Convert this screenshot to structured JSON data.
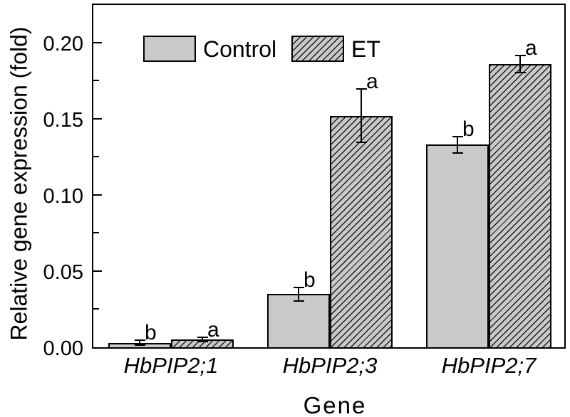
{
  "chart_data": {
    "type": "bar",
    "xlabel": "Gene",
    "ylabel": "Relative gene expression (fold)",
    "categories": [
      "HbPIP2;1",
      "HbPIP2;3",
      "HbPIP2;7"
    ],
    "series": [
      {
        "name": "Control",
        "values": [
          0.003,
          0.035,
          0.133
        ],
        "errors": [
          0.001,
          0.004,
          0.005
        ],
        "sig_letters": [
          "b",
          "b",
          "b"
        ],
        "hatch": "none"
      },
      {
        "name": "ET",
        "values": [
          0.005,
          0.152,
          0.186
        ],
        "errors": [
          0.001,
          0.017,
          0.005
        ],
        "sig_letters": [
          "a",
          "a",
          "a"
        ],
        "hatch": "diagonal-forward"
      }
    ],
    "y_ticks": [
      "0.00",
      "0.05",
      "0.10",
      "0.15",
      "0.20"
    ],
    "y_tick_values": [
      0,
      0.05,
      0.1,
      0.15,
      0.2
    ],
    "y_minor_tick_values": [
      0.025,
      0.075,
      0.125,
      0.175
    ],
    "ylim": [
      0,
      0.226
    ],
    "grid": false,
    "legend_position": "top-left-inside",
    "error_bar_style": "caps-both-ends",
    "colors": {
      "bar_fill": "#c9c9c9",
      "bar_border": "#000000",
      "hatch_line": "#1c1c1c",
      "axis": "#000000",
      "text": "#000000",
      "background": "#ffffff"
    }
  }
}
